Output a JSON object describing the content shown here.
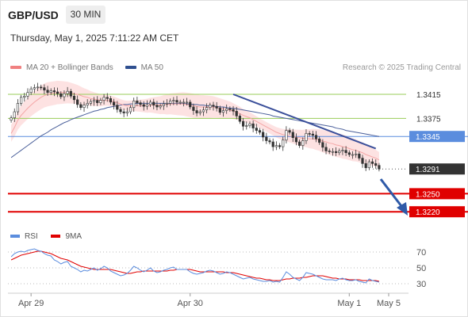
{
  "header": {
    "symbol": "GBP/USD",
    "timeframe": "30 MIN",
    "timestamp": "Thursday, May 1, 2025 7:11:22 AM CET"
  },
  "legend": {
    "items": [
      {
        "label": "MA 20 + Bollinger Bands",
        "color": "#f08080"
      },
      {
        "label": "MA 50",
        "color": "#2f4f8f"
      }
    ],
    "credit": "Research © 2025 Trading Central"
  },
  "rsi_legend": {
    "items": [
      {
        "label": "RSI",
        "color": "#5b8dde"
      },
      {
        "label": "9MA",
        "color": "#e00000"
      }
    ]
  },
  "colors": {
    "resistance": "#9acd5a",
    "pivot": "#5b8dde",
    "support": "#e00000",
    "current": "#333333",
    "arrow": "#2f5aa8",
    "bollinger": "#fde2e2",
    "ma20": "#f4a6a6",
    "ma50": "#4a5f9a"
  },
  "chart_data": {
    "type": "candlestick",
    "price_range": [
      1.319,
      1.344
    ],
    "levels": [
      {
        "label": "1.3415",
        "value": 1.3415,
        "kind": "resistance"
      },
      {
        "label": "1.3375",
        "value": 1.3375,
        "kind": "resistance"
      },
      {
        "label": "1.3345",
        "value": 1.3345,
        "kind": "pivot"
      },
      {
        "label": "1.3291",
        "value": 1.3291,
        "kind": "current"
      },
      {
        "label": "1.3250",
        "value": 1.325,
        "kind": "support"
      },
      {
        "label": "1.3220",
        "value": 1.322,
        "kind": "support"
      }
    ],
    "x_ticks": [
      {
        "label": "Apr 29",
        "index": 6
      },
      {
        "label": "Apr 30",
        "index": 54
      },
      {
        "label": "May 1",
        "index": 102
      },
      {
        "label": "May 5",
        "index": 123
      }
    ],
    "close": [
      1.3376,
      1.3386,
      1.34,
      1.341,
      1.3412,
      1.3418,
      1.3424,
      1.3426,
      1.3427,
      1.3426,
      1.3422,
      1.3418,
      1.3421,
      1.3419,
      1.3416,
      1.3411,
      1.3416,
      1.342,
      1.3412,
      1.3406,
      1.3398,
      1.3393,
      1.3397,
      1.34,
      1.3403,
      1.3405,
      1.3401,
      1.3405,
      1.341,
      1.3408,
      1.3402,
      1.3397,
      1.339,
      1.3386,
      1.3384,
      1.3386,
      1.3393,
      1.3404,
      1.3401,
      1.3398,
      1.3395,
      1.3398,
      1.3402,
      1.3397,
      1.3394,
      1.3396,
      1.3399,
      1.34,
      1.3404,
      1.3405,
      1.3402,
      1.3402,
      1.3402,
      1.3402,
      1.3394,
      1.3388,
      1.3384,
      1.3386,
      1.3389,
      1.3393,
      1.3397,
      1.3395,
      1.3392,
      1.3385,
      1.3388,
      1.3391,
      1.339,
      1.3387,
      1.3379,
      1.337,
      1.3362,
      1.3363,
      1.3366,
      1.3359,
      1.3355,
      1.3352,
      1.3344,
      1.3338,
      1.3336,
      1.3328,
      1.333,
      1.3328,
      1.3339,
      1.3355,
      1.3352,
      1.3343,
      1.3336,
      1.333,
      1.3338,
      1.335,
      1.3349,
      1.3347,
      1.3341,
      1.3335,
      1.3327,
      1.3321,
      1.332,
      1.332,
      1.3318,
      1.3321,
      1.3322,
      1.3318,
      1.3315,
      1.3315,
      1.3316,
      1.3309,
      1.33,
      1.3293,
      1.3303,
      1.33,
      1.3297,
      1.3291
    ],
    "ma20": [
      1.335,
      1.336,
      1.3372,
      1.338,
      1.3386,
      1.3392,
      1.3397,
      1.3402,
      1.3406,
      1.341,
      1.3413,
      1.3415,
      1.3416,
      1.3417,
      1.3418,
      1.3418,
      1.3418,
      1.3418,
      1.3417,
      1.3416,
      1.3415,
      1.3413,
      1.3411,
      1.341,
      1.3408,
      1.3407,
      1.3406,
      1.3405,
      1.3405,
      1.3405,
      1.3404,
      1.3403,
      1.3401,
      1.3399,
      1.3397,
      1.3396,
      1.3396,
      1.3396,
      1.3396,
      1.3396,
      1.3396,
      1.3396,
      1.3397,
      1.3397,
      1.3397,
      1.3397,
      1.3398,
      1.3398,
      1.3399,
      1.3399,
      1.3399,
      1.3399,
      1.3399,
      1.3398,
      1.3397,
      1.3396,
      1.3395,
      1.3394,
      1.3394,
      1.3394,
      1.3394,
      1.3394,
      1.3393,
      1.3392,
      1.3391,
      1.339,
      1.3389,
      1.3387,
      1.3385,
      1.3383,
      1.338,
      1.3378,
      1.3376,
      1.3373,
      1.337,
      1.3367,
      1.3364,
      1.3361,
      1.3358,
      1.3355,
      1.3352,
      1.335,
      1.3348,
      1.3347,
      1.3346,
      1.3345,
      1.3344,
      1.3343,
      1.3342,
      1.3342,
      1.3341,
      1.3341,
      1.334,
      1.3339,
      1.3337,
      1.3336,
      1.3334,
      1.3333,
      1.3331,
      1.333,
      1.3328,
      1.3327,
      1.3325,
      1.3323,
      1.3322,
      1.332,
      1.3318,
      1.3315,
      1.3313,
      1.3311,
      1.3309,
      1.3306
    ],
    "ma50": [
      1.331,
      1.3314,
      1.3318,
      1.3322,
      1.3326,
      1.333,
      1.3334,
      1.3338,
      1.3342,
      1.3346,
      1.3349,
      1.3352,
      1.3356,
      1.3359,
      1.3362,
      1.3365,
      1.3368,
      1.337,
      1.3373,
      1.3375,
      1.3377,
      1.3379,
      1.3381,
      1.3383,
      1.3385,
      1.3387,
      1.3388,
      1.339,
      1.3391,
      1.3393,
      1.3394,
      1.3395,
      1.3396,
      1.3397,
      1.3398,
      1.3398,
      1.3399,
      1.3399,
      1.34,
      1.34,
      1.34,
      1.34,
      1.34,
      1.34,
      1.34,
      1.34,
      1.34,
      1.34,
      1.34,
      1.34,
      1.34,
      1.34,
      1.34,
      1.3399,
      1.3399,
      1.3398,
      1.3398,
      1.3397,
      1.3397,
      1.3396,
      1.3396,
      1.3395,
      1.3395,
      1.3394,
      1.3394,
      1.3393,
      1.3392,
      1.3392,
      1.3391,
      1.339,
      1.3389,
      1.3388,
      1.3387,
      1.3386,
      1.3385,
      1.3384,
      1.3383,
      1.3382,
      1.3381,
      1.3379,
      1.3378,
      1.3377,
      1.3376,
      1.3375,
      1.3374,
      1.3373,
      1.3372,
      1.3371,
      1.337,
      1.3369,
      1.3368,
      1.3367,
      1.3366,
      1.3365,
      1.3364,
      1.3363,
      1.3362,
      1.3361,
      1.3359,
      1.3358,
      1.3357,
      1.3355,
      1.3354,
      1.3353,
      1.3352,
      1.3351,
      1.335,
      1.3349,
      1.3348,
      1.3347,
      1.3346,
      1.3345
    ],
    "rsi": {
      "ticks": [
        70,
        50,
        30
      ],
      "range": [
        20,
        80
      ],
      "rsi": [
        64,
        68,
        70,
        71,
        70,
        72,
        73,
        74,
        72,
        71,
        68,
        66,
        65,
        60,
        58,
        55,
        57,
        58,
        52,
        50,
        48,
        45,
        47,
        46,
        48,
        50,
        47,
        49,
        52,
        50,
        46,
        44,
        42,
        40,
        41,
        43,
        47,
        52,
        50,
        47,
        45,
        47,
        50,
        46,
        44,
        45,
        47,
        48,
        50,
        51,
        48,
        48,
        48,
        48,
        45,
        43,
        42,
        43,
        44,
        46,
        47,
        46,
        44,
        42,
        43,
        45,
        44,
        42,
        40,
        38,
        36,
        37,
        38,
        36,
        35,
        34,
        33,
        33,
        34,
        32,
        33,
        32,
        38,
        45,
        42,
        38,
        36,
        34,
        38,
        44,
        43,
        42,
        40,
        38,
        36,
        35,
        35,
        35,
        34,
        36,
        37,
        35,
        34,
        34,
        35,
        33,
        32,
        31,
        36,
        34,
        33,
        32
      ],
      "ma9": [
        60,
        62,
        64,
        66,
        67,
        68,
        69,
        70,
        71,
        71,
        70,
        69,
        68,
        66,
        64,
        62,
        61,
        60,
        58,
        56,
        54,
        52,
        51,
        50,
        49,
        48,
        48,
        48,
        48,
        48,
        48,
        47,
        46,
        45,
        44,
        43,
        43,
        44,
        45,
        45,
        46,
        46,
        46,
        46,
        46,
        46,
        46,
        46,
        47,
        47,
        48,
        48,
        48,
        48,
        48,
        47,
        46,
        45,
        45,
        45,
        45,
        45,
        45,
        45,
        45,
        44,
        44,
        44,
        43,
        42,
        41,
        40,
        39,
        38,
        37,
        37,
        36,
        35,
        35,
        34,
        34,
        34,
        35,
        36,
        36,
        37,
        37,
        37,
        38,
        38,
        39,
        40,
        40,
        40,
        40,
        39,
        38,
        37,
        37,
        36,
        36,
        36,
        35,
        35,
        35,
        35,
        34,
        34,
        34,
        34,
        34,
        33
      ]
    }
  }
}
